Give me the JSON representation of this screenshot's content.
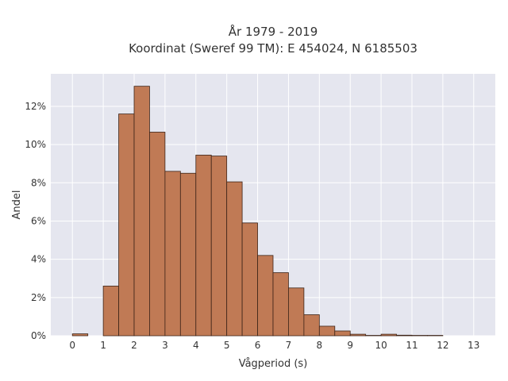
{
  "chart_data": {
    "type": "bar",
    "title": "År 1979 - 2019",
    "subtitle": "Koordinat (Sweref 99 TM): E 454024, N 6185503",
    "xlabel": "Vågperiod (s)",
    "ylabel": "Andel",
    "bin_width": 0.5,
    "bin_starts": [
      0,
      0.5,
      1,
      1.5,
      2,
      2.5,
      3,
      3.5,
      4,
      4.5,
      5,
      5.5,
      6,
      6.5,
      7,
      7.5,
      8,
      8.5,
      9,
      9.5,
      10,
      10.5,
      11,
      11.5,
      12,
      12.5,
      13
    ],
    "values": [
      0.1,
      0,
      2.6,
      11.6,
      13.05,
      10.65,
      8.6,
      8.5,
      9.45,
      9.4,
      8.05,
      5.9,
      4.2,
      3.3,
      2.5,
      1.1,
      0.5,
      0.25,
      0.08,
      0.02,
      0.08,
      0.03,
      0.02,
      0.02,
      0,
      0,
      0
    ],
    "x_ticks": [
      0,
      1,
      2,
      3,
      4,
      5,
      6,
      7,
      8,
      9,
      10,
      11,
      12,
      13
    ],
    "y_ticks": [
      "0%",
      "2%",
      "4%",
      "6%",
      "8%",
      "10%",
      "12%"
    ],
    "y_tick_values": [
      0,
      2,
      4,
      6,
      8,
      10,
      12
    ],
    "xlim": [
      -0.7,
      13.7
    ],
    "ylim": [
      0,
      13.7
    ],
    "grid": true,
    "colors": {
      "bar_fill": "#c07a55",
      "bar_edge": "#3d2418",
      "plot_background": "#e5e6ef",
      "grid": "#ffffff"
    }
  }
}
